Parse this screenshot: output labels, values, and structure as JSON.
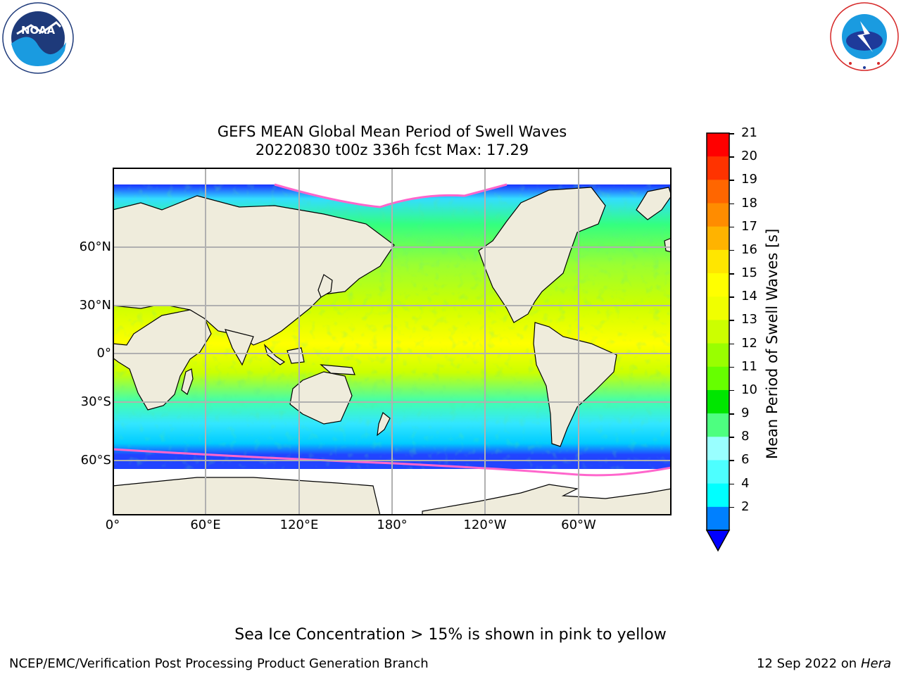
{
  "logos": {
    "noaa": {
      "center_text": "NOAA",
      "ring_text": "NATIONAL OCEANIC AND ATMOSPHERIC ADMINISTRATION",
      "bottom_text": "U.S. DEPARTMENT OF COMMERCE"
    },
    "nws": {
      "ring_text": "NATIONAL WEATHER SERVICE"
    }
  },
  "title": {
    "line1": "GEFS MEAN Global Mean Period of Swell Waves",
    "line2": "20220830 t00z 336h fcst   Max: 17.29"
  },
  "map": {
    "lat_labels": [
      "60°N",
      "30°N",
      "0°",
      "30°S",
      "60°S"
    ],
    "lon_labels": [
      "0°",
      "60°E",
      "120°E",
      "180°",
      "120°W",
      "60°W"
    ],
    "colors": {
      "land": "#efecdc",
      "sea_ice": "#ffffff",
      "grid": "#b0b0b0",
      "coast": "#000000"
    }
  },
  "colorbar": {
    "label": "Mean Period of Swell Waves [s]",
    "ticks": [
      "21",
      "20",
      "19",
      "18",
      "17",
      "16",
      "15",
      "14",
      "13",
      "12",
      "11",
      "10",
      "9",
      "8",
      "6",
      "4",
      "2"
    ],
    "colors_top_to_bottom": [
      "#ff0000",
      "#ff3300",
      "#ff6600",
      "#ff8c00",
      "#ffb300",
      "#ffe600",
      "#ffff00",
      "#f0ff00",
      "#ccff00",
      "#99ff00",
      "#66ff00",
      "#00e600",
      "#4dff80",
      "#99ffff",
      "#4dffff",
      "#00ffff",
      "#0080ff"
    ],
    "extend_color": "#0000ff"
  },
  "note": "Sea Ice Concentration > 15% is shown in pink to yellow",
  "footer": {
    "left": "NCEP/EMC/Verification Post Processing Product Generation Branch",
    "right_date": "12 Sep 2022 on",
    "right_machine": "Hera"
  }
}
